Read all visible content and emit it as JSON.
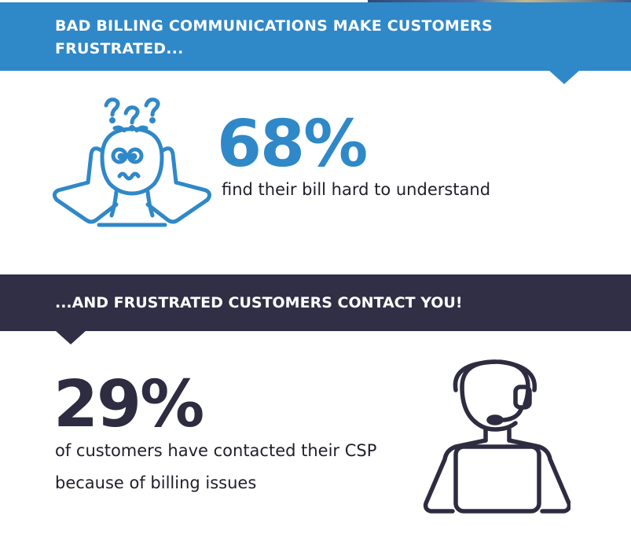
{
  "section1": {
    "banner_title": "BAD BILLING COMMUNICATIONS MAKE CUSTOMERS FRUSTRATED...",
    "stat_value": "68%",
    "stat_description": "find their bill hard to understand",
    "icon": "confused-person-icon"
  },
  "section2": {
    "banner_title": "...AND FRUSTRATED CUSTOMERS CONTACT YOU!",
    "stat_value": "29%",
    "stat_description_line1": "of customers have contacted their CSP",
    "stat_description_line2": "because of billing issues",
    "icon": "support-agent-icon"
  },
  "colors": {
    "blue_accent": "#2f88c8",
    "dark_navy": "#302f45",
    "text": "#1f1f2b",
    "background": "#ffffff"
  }
}
